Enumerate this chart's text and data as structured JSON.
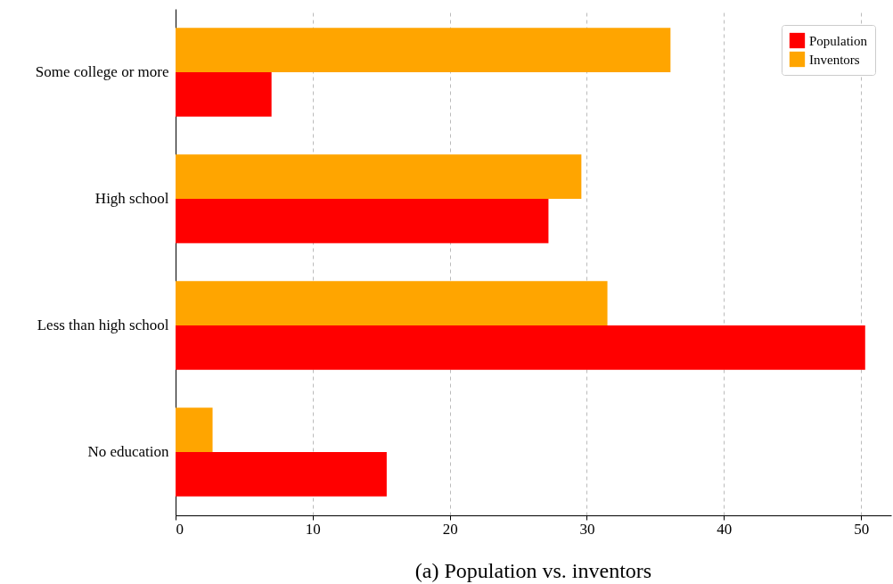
{
  "chart_data": {
    "type": "bar",
    "orientation": "horizontal",
    "title": "(a) Population vs. inventors",
    "categories": [
      "Some college or more",
      "High school",
      "Less than high school",
      "No education"
    ],
    "series": [
      {
        "name": "Population",
        "color": "#ff0000",
        "values": [
          7.0,
          27.2,
          50.3,
          15.4
        ]
      },
      {
        "name": "Inventors",
        "color": "#ffa500",
        "values": [
          36.1,
          29.6,
          31.5,
          2.7
        ]
      }
    ],
    "xlim": [
      0,
      52.2
    ],
    "xticks": [
      0,
      10,
      20,
      30,
      40,
      50
    ],
    "grid": "x",
    "legend": "top right"
  }
}
